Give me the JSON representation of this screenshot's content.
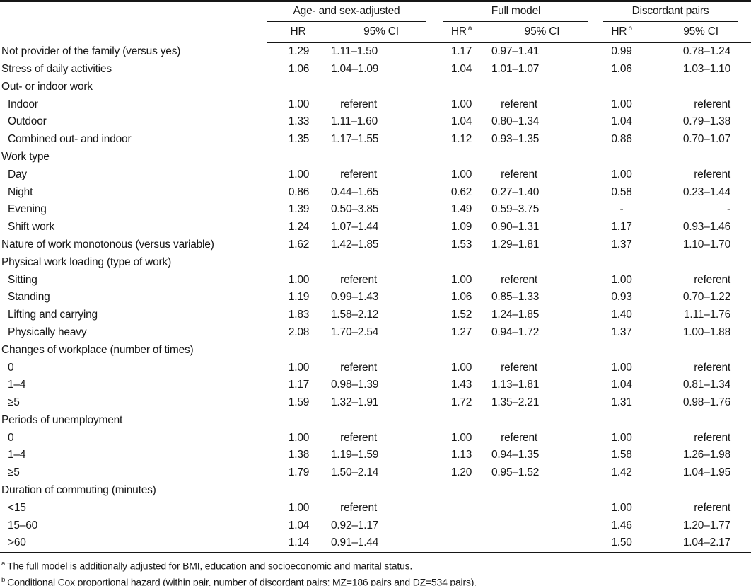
{
  "table": {
    "col_groups": [
      {
        "title": "Age- and sex-adjusted",
        "hr_label": "HR",
        "hr_sup": "",
        "ci_label": "95% CI"
      },
      {
        "title": "Full model",
        "hr_label": "HR",
        "hr_sup": "a",
        "ci_label": "95% CI"
      },
      {
        "title": "Discordant pairs",
        "hr_label": "HR",
        "hr_sup": "b",
        "ci_label": "95% CI"
      }
    ],
    "rows": [
      {
        "label": "Not provider of the family (versus yes)",
        "indent": false,
        "cells": [
          "1.29",
          "1.11–1.50",
          "1.17",
          "0.97–1.41",
          "0.99",
          "0.78–1.24"
        ]
      },
      {
        "label": "Stress of daily activities",
        "indent": false,
        "cells": [
          "1.06",
          "1.04–1.09",
          "1.04",
          "1.01–1.07",
          "1.06",
          "1.03–1.10"
        ]
      },
      {
        "label": "Out- or indoor work",
        "indent": false,
        "cells": [
          "",
          "",
          "",
          "",
          "",
          ""
        ]
      },
      {
        "label": "Indoor",
        "indent": true,
        "cells": [
          "1.00",
          "referent",
          "1.00",
          "referent",
          "1.00",
          "referent"
        ]
      },
      {
        "label": "Outdoor",
        "indent": true,
        "cells": [
          "1.33",
          "1.11–1.60",
          "1.04",
          "0.80–1.34",
          "1.04",
          "0.79–1.38"
        ]
      },
      {
        "label": "Combined out- and indoor",
        "indent": true,
        "cells": [
          "1.35",
          "1.17–1.55",
          "1.12",
          "0.93–1.35",
          "0.86",
          "0.70–1.07"
        ]
      },
      {
        "label": "Work type",
        "indent": false,
        "cells": [
          "",
          "",
          "",
          "",
          "",
          ""
        ]
      },
      {
        "label": "Day",
        "indent": true,
        "cells": [
          "1.00",
          "referent",
          "1.00",
          "referent",
          "1.00",
          "referent"
        ]
      },
      {
        "label": "Night",
        "indent": true,
        "cells": [
          "0.86",
          "0.44–1.65",
          "0.62",
          "0.27–1.40",
          "0.58",
          "0.23–1.44"
        ]
      },
      {
        "label": "Evening",
        "indent": true,
        "cells": [
          "1.39",
          "0.50–3.85",
          "1.49",
          "0.59–3.75",
          "-",
          "-"
        ]
      },
      {
        "label": "Shift work",
        "indent": true,
        "cells": [
          "1.24",
          "1.07–1.44",
          "1.09",
          "0.90–1.31",
          "1.17",
          "0.93–1.46"
        ]
      },
      {
        "label": "Nature of work monotonous (versus variable)",
        "indent": false,
        "cells": [
          "1.62",
          "1.42–1.85",
          "1.53",
          "1.29–1.81",
          "1.37",
          "1.10–1.70"
        ]
      },
      {
        "label": "Physical work loading (type of work)",
        "indent": false,
        "cells": [
          "",
          "",
          "",
          "",
          "",
          ""
        ]
      },
      {
        "label": "Sitting",
        "indent": true,
        "cells": [
          "1.00",
          "referent",
          "1.00",
          "referent",
          "1.00",
          "referent"
        ]
      },
      {
        "label": "Standing",
        "indent": true,
        "cells": [
          "1.19",
          "0.99–1.43",
          "1.06",
          "0.85–1.33",
          "0.93",
          "0.70–1.22"
        ]
      },
      {
        "label": "Lifting and carrying",
        "indent": true,
        "cells": [
          "1.83",
          "1.58–2.12",
          "1.52",
          "1.24–1.85",
          "1.40",
          "1.11–1.76"
        ]
      },
      {
        "label": "Physically heavy",
        "indent": true,
        "cells": [
          "2.08",
          "1.70–2.54",
          "1.27",
          "0.94–1.72",
          "1.37",
          "1.00–1.88"
        ]
      },
      {
        "label": "Changes of workplace (number of times)",
        "indent": false,
        "cells": [
          "",
          "",
          "",
          "",
          "",
          ""
        ]
      },
      {
        "label": "0",
        "indent": true,
        "cells": [
          "1.00",
          "referent",
          "1.00",
          "referent",
          "1.00",
          "referent"
        ]
      },
      {
        "label": "1–4",
        "indent": true,
        "cells": [
          "1.17",
          "0.98–1.39",
          "1.43",
          "1.13–1.81",
          "1.04",
          "0.81–1.34"
        ]
      },
      {
        "label": "≥5",
        "indent": true,
        "cells": [
          "1.59",
          "1.32–1.91",
          "1.72",
          "1.35–2.21",
          "1.31",
          "0.98–1.76"
        ]
      },
      {
        "label": "Periods of unemployment",
        "indent": false,
        "cells": [
          "",
          "",
          "",
          "",
          "",
          ""
        ]
      },
      {
        "label": "0",
        "indent": true,
        "cells": [
          "1.00",
          "referent",
          "1.00",
          "referent",
          "1.00",
          "referent"
        ]
      },
      {
        "label": "1–4",
        "indent": true,
        "cells": [
          "1.38",
          "1.19–1.59",
          "1.13",
          "0.94–1.35",
          "1.58",
          "1.26–1.98"
        ]
      },
      {
        "label": "≥5",
        "indent": true,
        "cells": [
          "1.79",
          "1.50–2.14",
          "1.20",
          "0.95–1.52",
          "1.42",
          "1.04–1.95"
        ]
      },
      {
        "label": "Duration of commuting (minutes)",
        "indent": false,
        "cells": [
          "",
          "",
          "",
          "",
          "",
          ""
        ]
      },
      {
        "label": "<15",
        "indent": true,
        "cells": [
          "1.00",
          "referent",
          "",
          "",
          "1.00",
          "referent"
        ]
      },
      {
        "label": "15–60",
        "indent": true,
        "cells": [
          "1.04",
          "0.92–1.17",
          "",
          "",
          "1.46",
          "1.20–1.77"
        ]
      },
      {
        "label": ">60",
        "indent": true,
        "cells": [
          "1.14",
          "0.91–1.44",
          "",
          "",
          "1.50",
          "1.04–2.17"
        ]
      }
    ],
    "footnotes": [
      {
        "sup": "a",
        "text": "The full model is additionally adjusted for BMI, education and socioeconomic and marital status."
      },
      {
        "sup": "b",
        "text": "Conditional Cox proportional hazard (within pair, number of discordant pairs: MZ=186 pairs and DZ=534 pairs)."
      }
    ]
  }
}
